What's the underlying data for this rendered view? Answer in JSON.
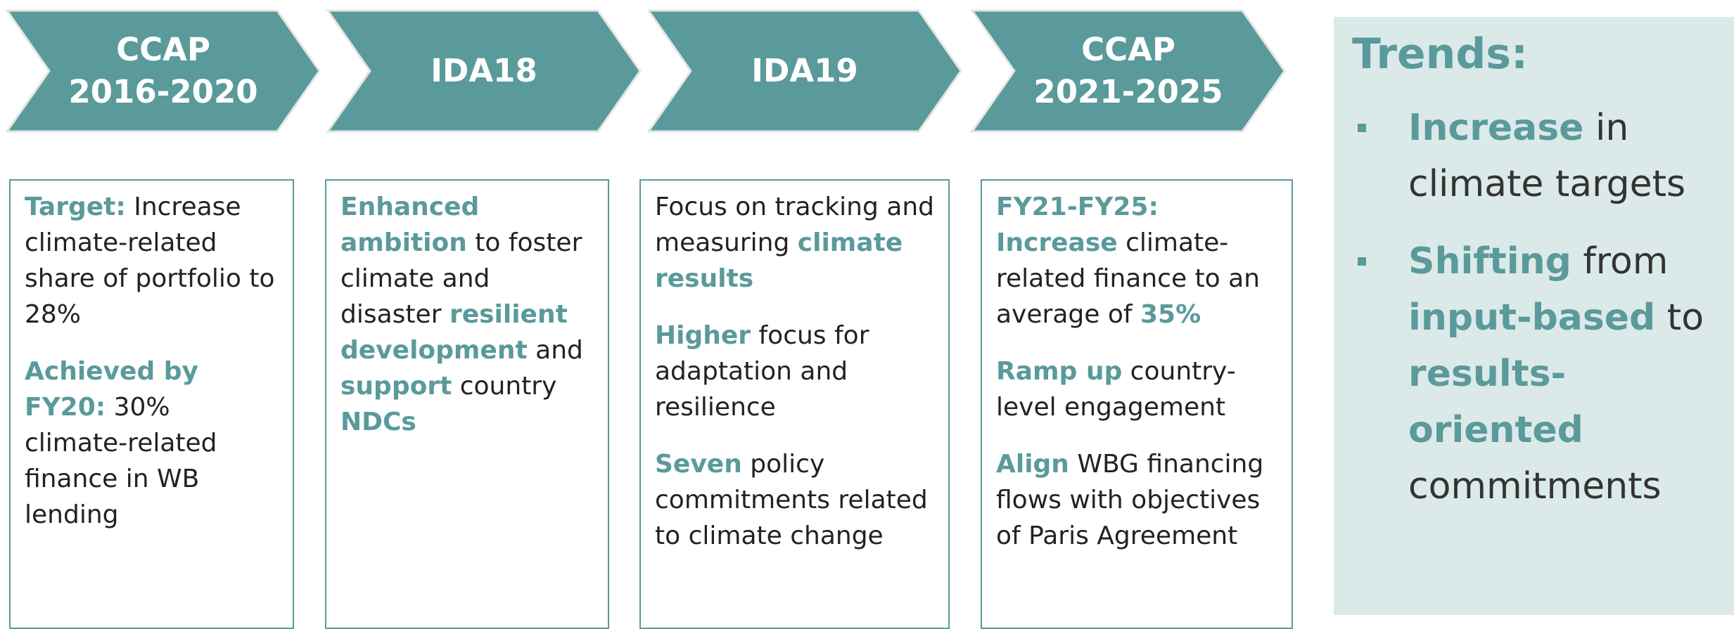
{
  "stages": [
    {
      "label": [
        "CCAP",
        "2016-2020"
      ],
      "paragraphs": [
        [
          {
            "text": "Target:",
            "bold": true
          },
          {
            "text": " Increase climate-related share of portfolio to 28%",
            "bold": false
          }
        ],
        [
          {
            "text": "Achieved by FY20:",
            "bold": true
          },
          {
            "text": " 30% climate-related finance in WB lending",
            "bold": false
          }
        ]
      ]
    },
    {
      "label": [
        "IDA18"
      ],
      "paragraphs": [
        [
          {
            "text": "Enhanced ambition",
            "bold": true
          },
          {
            "text": " to foster climate and disaster ",
            "bold": false
          },
          {
            "text": "resilient development",
            "bold": true
          },
          {
            "text": " and ",
            "bold": false
          },
          {
            "text": "support",
            "bold": true
          },
          {
            "text": " country ",
            "bold": false
          },
          {
            "text": "NDCs",
            "bold": true
          }
        ]
      ]
    },
    {
      "label": [
        "IDA19"
      ],
      "paragraphs": [
        [
          {
            "text": "Focus on tracking and measuring ",
            "bold": false
          },
          {
            "text": "climate results",
            "bold": true
          }
        ],
        [
          {
            "text": "Higher",
            "bold": true
          },
          {
            "text": " focus for adaptation and resilience",
            "bold": false
          }
        ],
        [
          {
            "text": "Seven",
            "bold": true
          },
          {
            "text": " policy commitments related to climate change",
            "bold": false
          }
        ]
      ]
    },
    {
      "label": [
        "CCAP",
        "2021-2025"
      ],
      "paragraphs": [
        [
          {
            "text": "FY21-FY25: Increase",
            "bold": true
          },
          {
            "text": " climate-related finance to an average of ",
            "bold": false
          },
          {
            "text": "35%",
            "bold": true
          }
        ],
        [
          {
            "text": "Ramp up",
            "bold": true
          },
          {
            "text": " country-level engagement",
            "bold": false
          }
        ],
        [
          {
            "text": "Align",
            "bold": true
          },
          {
            "text": " WBG financing flows with objectives of Paris Agreement",
            "bold": false
          }
        ]
      ]
    }
  ],
  "trends": {
    "title": "Trends:",
    "bullets": [
      [
        {
          "text": "Increase",
          "bold": true
        },
        {
          "text": " in climate targets",
          "bold": false
        }
      ],
      [
        {
          "text": "Shifting",
          "bold": true
        },
        {
          "text": " from ",
          "bold": false
        },
        {
          "text": "input-based",
          "bold": true
        },
        {
          "text": " to ",
          "bold": false
        },
        {
          "text": "results-oriented",
          "bold": true
        },
        {
          "text": " commitments",
          "bold": false
        }
      ]
    ]
  }
}
